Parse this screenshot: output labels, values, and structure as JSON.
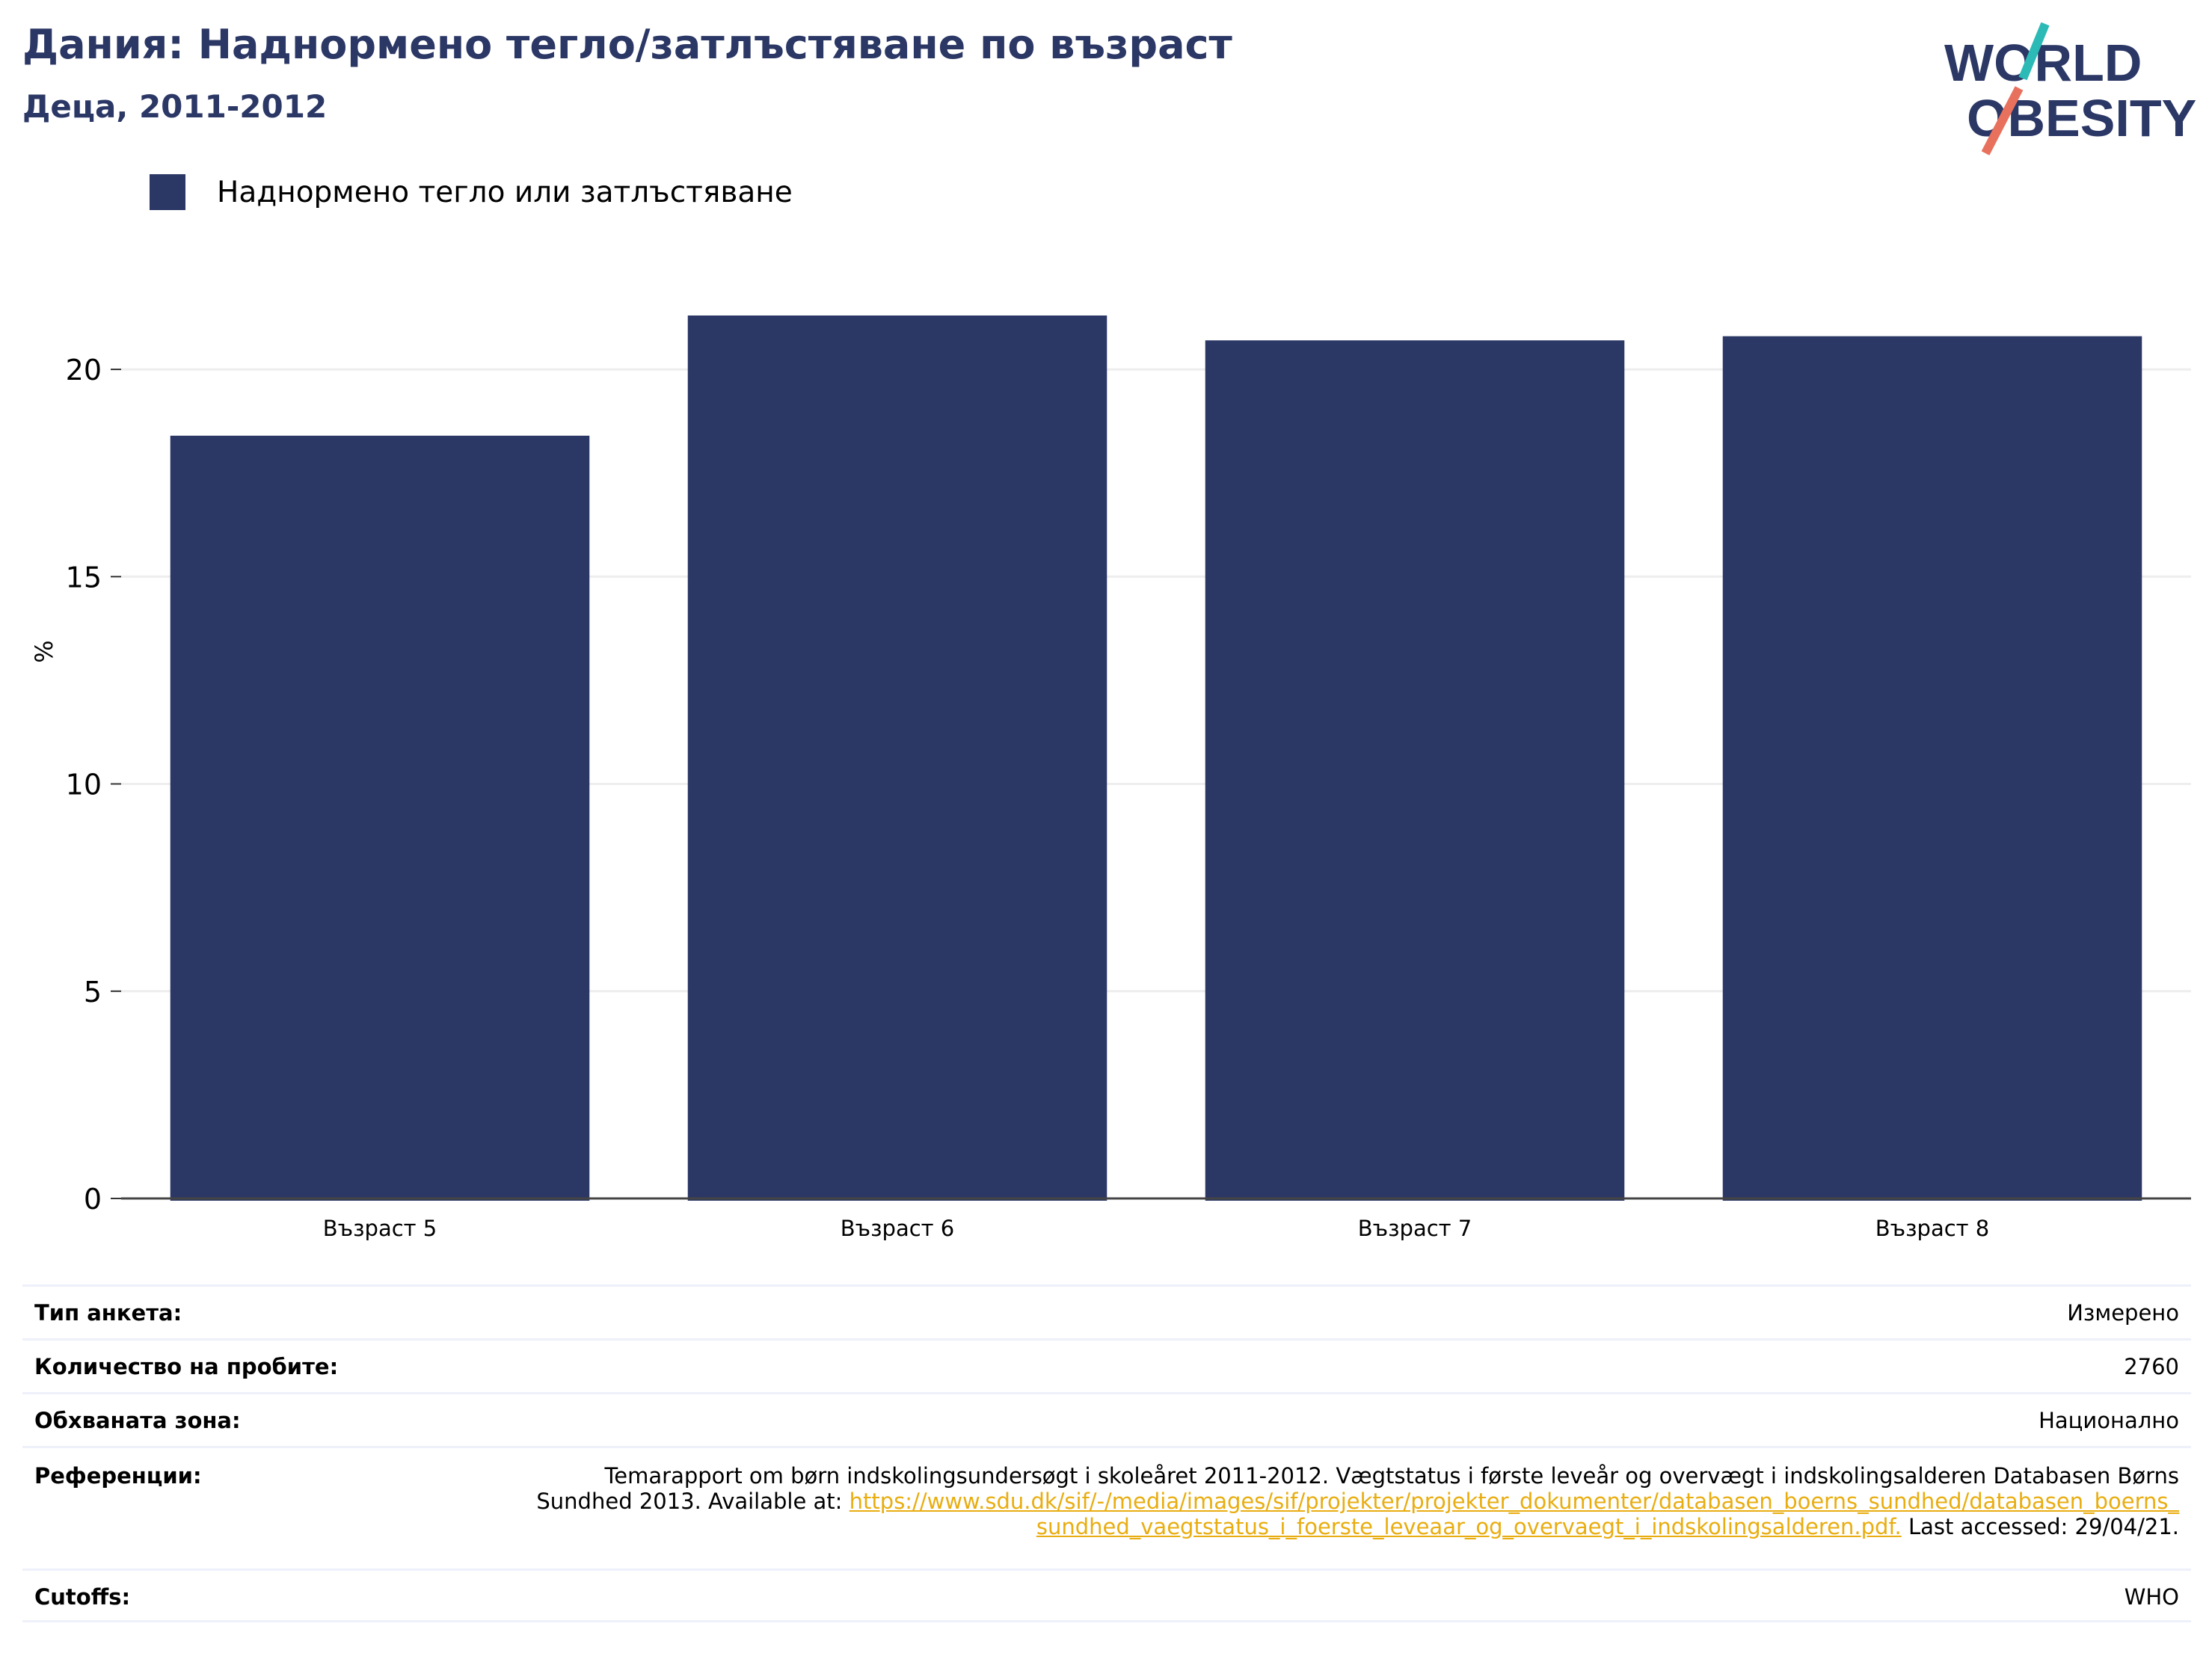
{
  "header": {
    "title": "Дания: Наднормено тегло/затлъстяване по възраст",
    "subtitle": "Деца, 2011-2012"
  },
  "logo": {
    "line1": "WORLD",
    "line2": "OBESITY",
    "text_color": "#2b3765",
    "slash_top_color": "#2bbab5",
    "slash_bottom_color": "#e8715d"
  },
  "chart_data": {
    "type": "bar",
    "categories": [
      "Възраст 5",
      "Възраст 6",
      "Възраст 7",
      "Възраст 8"
    ],
    "series": [
      {
        "name": "Наднормено тегло или затлъстяване",
        "values": [
          18.4,
          21.3,
          20.7,
          20.8
        ],
        "color": "#2b3765"
      }
    ],
    "ylabel": "%",
    "ylim": [
      0,
      23.5
    ],
    "yticks": [
      0,
      5,
      10,
      15,
      20
    ],
    "grid": true,
    "legend": "top-left"
  },
  "info": {
    "survey_type": {
      "label": "Тип анкета:",
      "value": "Измерено"
    },
    "sample_size": {
      "label": "Количество на пробите:",
      "value": "2760"
    },
    "area": {
      "label": "Обхваната зона:",
      "value": "Национално"
    },
    "references": {
      "label": "Референции:",
      "text_before": "Temarapport om børn indskolingsundersøgt i skoleåret 2011-2012. Vægtstatus i første leveår og overvægt i indskolingsalderen Databasen Børns Sundhed 2013. Available at: ",
      "link": "https://www.sdu.dk/sif/-/media/images/sif/projekter/projekter_dokumenter/databasen_boerns_sundhed/databasen_boerns_sundhed_vaegtstatus_i_foerste_leveaar_og_overvaegt_i_indskolingsalderen.pdf.",
      "text_after": " Last accessed: 29/04/21."
    },
    "cutoffs": {
      "label": "Cutoffs:",
      "value": "WHO"
    }
  }
}
